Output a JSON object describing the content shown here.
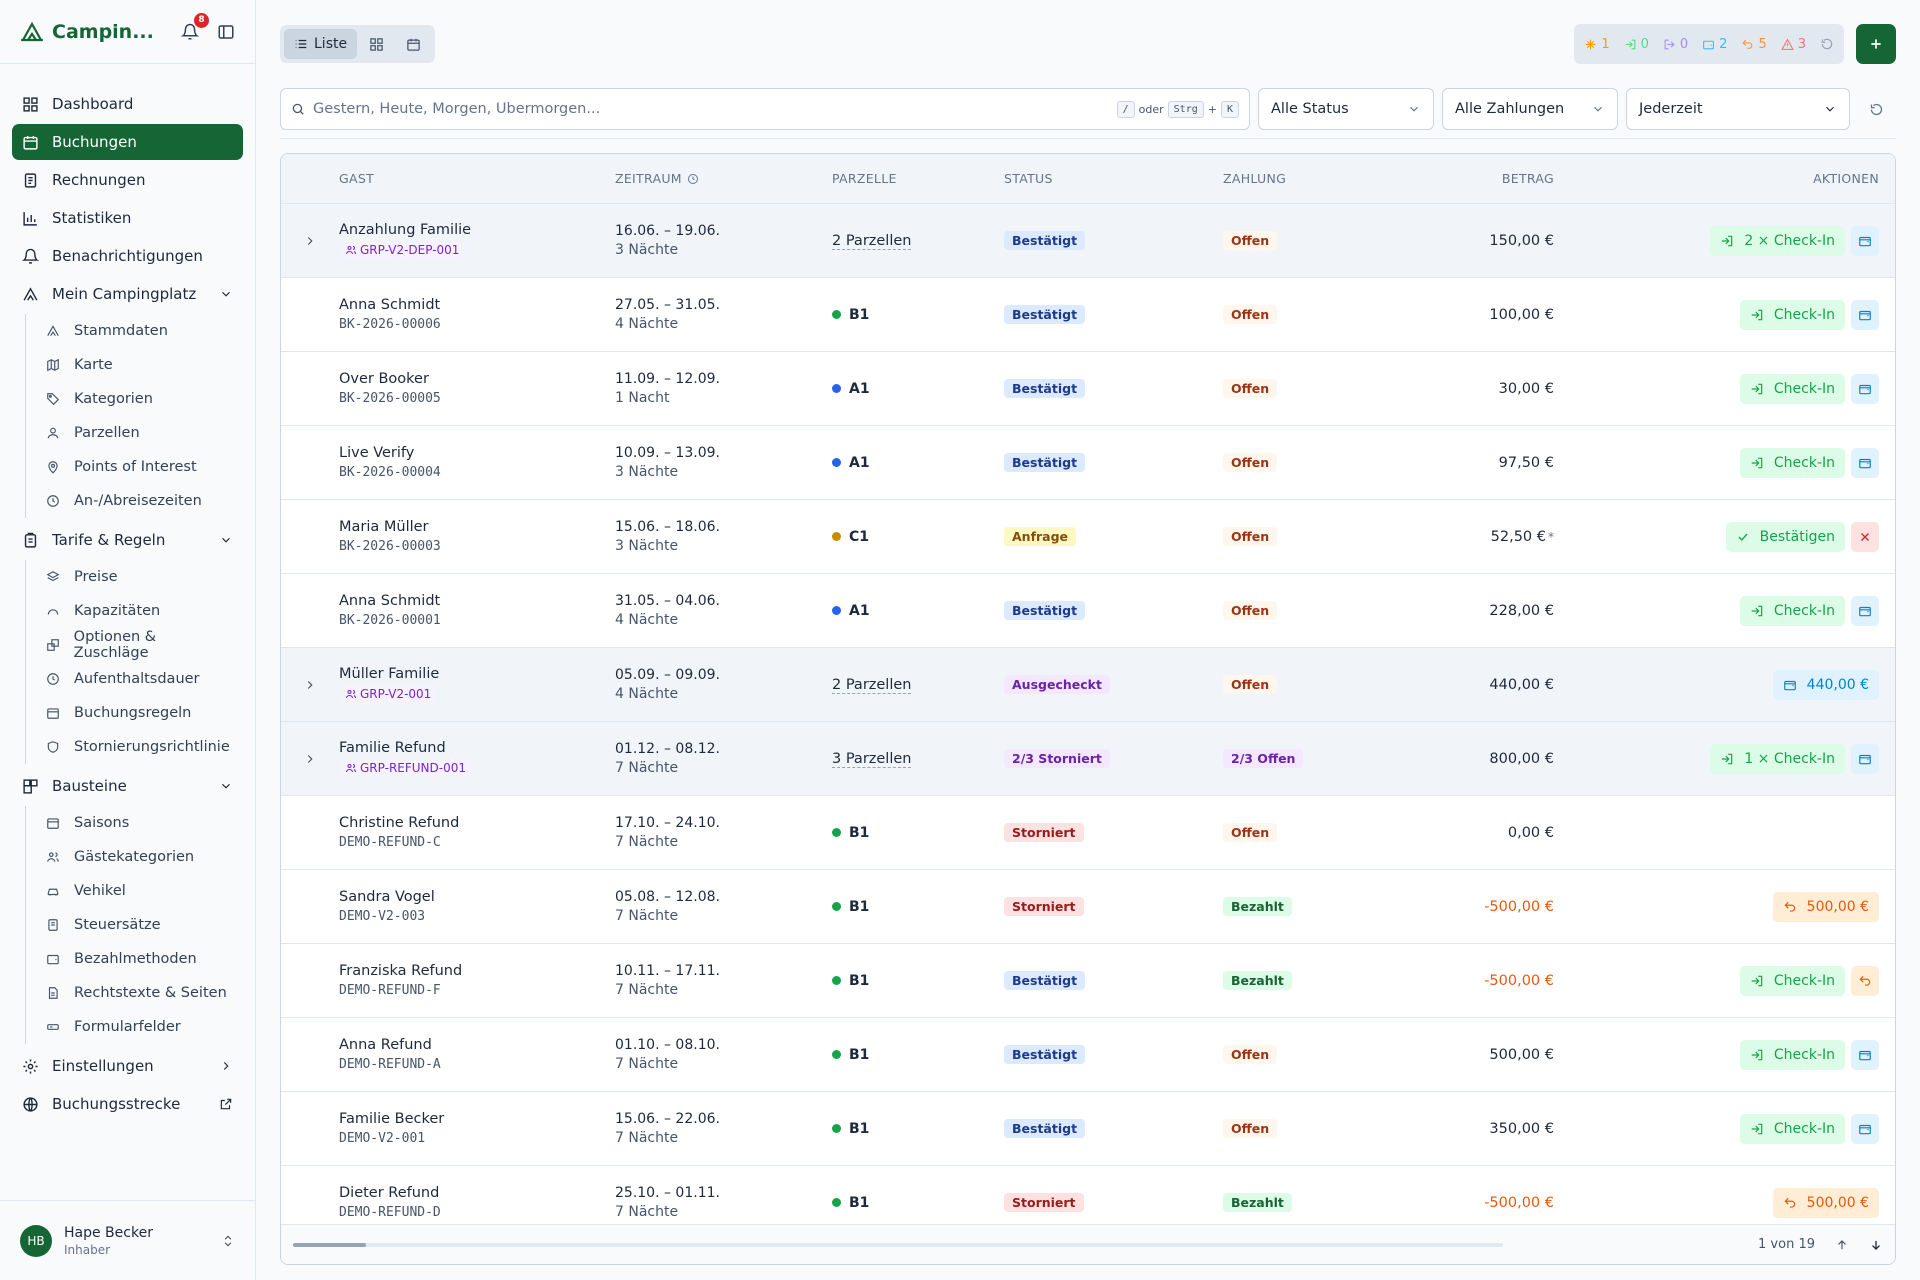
{
  "app": {
    "brand": "Campin...",
    "notifications_count": "8"
  },
  "sidebar": {
    "dashboard": "Dashboard",
    "buchungen": "Buchungen",
    "rechnungen": "Rechnungen",
    "statistiken": "Statistiken",
    "benachrichtigungen": "Benachrichtigungen",
    "mein_campingplatz": "Mein Campingplatz",
    "mein_items": [
      "Stammdaten",
      "Karte",
      "Kategorien",
      "Parzellen",
      "Points of Interest",
      "An-/Abreisezeiten"
    ],
    "tarife": "Tarife & Regeln",
    "tarife_items": [
      "Preise",
      "Kapazitäten",
      "Optionen & Zuschläge",
      "Aufenthaltsdauer",
      "Buchungsregeln",
      "Stornierungsrichtlinie"
    ],
    "bausteine": "Bausteine",
    "bausteine_items": [
      "Saisons",
      "Gästekategorien",
      "Vehikel",
      "Steuersätze",
      "Bezahlmethoden",
      "Rechtstexte & Seiten",
      "Formularfelder"
    ],
    "einstellungen": "Einstellungen",
    "buchungsstrecke": "Buchungsstrecke"
  },
  "user": {
    "initials": "HB",
    "name": "Hape Becker",
    "role": "Inhaber"
  },
  "toolbar": {
    "view_list": "Liste",
    "counters": [
      "1",
      "0",
      "0",
      "2",
      "5",
      "3"
    ],
    "counter_colors": [
      "#f59e0b",
      "#4ade80",
      "#a78bfa",
      "#38bdf8",
      "#fb923c",
      "#f87171"
    ]
  },
  "filters": {
    "search_placeholder": "Gestern, Heute, Morgen, Übermorgen...",
    "kbd_slash": "/",
    "kbd_or": "oder",
    "kbd_ctrl": "Strg",
    "kbd_plus": "+",
    "kbd_k": "K",
    "status": "Alle Status",
    "zahlung": "Alle Zahlungen",
    "zeit": "Jederzeit"
  },
  "table": {
    "headers": {
      "gast": "GAST",
      "zeitraum": "ZEITRAUM",
      "parzelle": "PARZELLE",
      "status": "STATUS",
      "zahlung": "ZAHLUNG",
      "betrag": "BETRAG",
      "aktionen": "AKTIONEN"
    },
    "rows": [
      {
        "group": true,
        "name": "Anzahlung Familie",
        "ref": "GRP-V2-DEP-001",
        "dates": "16.06. – 19.06.",
        "nights": "3 Nächte",
        "parzelle": "2 Parzellen",
        "status": "Bestätigt",
        "status_style": "blue",
        "zahlung": "Offen",
        "zahlung_style": "orange",
        "betrag": "150,00 €",
        "neg": false,
        "action": "checkin",
        "action_label": "2 × Check-In",
        "second": "wallet"
      },
      {
        "group": false,
        "name": "Anna Schmidt",
        "ref": "BK-2026-00006",
        "dates": "27.05. – 31.05.",
        "nights": "4 Nächte",
        "parzelle": "B1",
        "dot": "#16a34a",
        "status": "Bestätigt",
        "status_style": "blue",
        "zahlung": "Offen",
        "zahlung_style": "orange",
        "betrag": "100,00 €",
        "neg": false,
        "action": "checkin",
        "action_label": "Check-In",
        "second": "wallet"
      },
      {
        "group": false,
        "name": "Over Booker",
        "ref": "BK-2026-00005",
        "dates": "11.09. – 12.09.",
        "nights": "1 Nacht",
        "parzelle": "A1",
        "dot": "#2563eb",
        "status": "Bestätigt",
        "status_style": "blue",
        "zahlung": "Offen",
        "zahlung_style": "orange",
        "betrag": "30,00 €",
        "neg": false,
        "action": "checkin",
        "action_label": "Check-In",
        "second": "wallet"
      },
      {
        "group": false,
        "name": "Live Verify",
        "ref": "BK-2026-00004",
        "dates": "10.09. – 13.09.",
        "nights": "3 Nächte",
        "parzelle": "A1",
        "dot": "#2563eb",
        "status": "Bestätigt",
        "status_style": "blue",
        "zahlung": "Offen",
        "zahlung_style": "orange",
        "betrag": "97,50 €",
        "neg": false,
        "action": "checkin",
        "action_label": "Check-In",
        "second": "wallet"
      },
      {
        "group": false,
        "name": "Maria Müller",
        "ref": "BK-2026-00003",
        "dates": "15.06. – 18.06.",
        "nights": "3 Nächte",
        "parzelle": "C1",
        "dot": "#ca8a04",
        "status": "Anfrage",
        "status_style": "yel",
        "zahlung": "Offen",
        "zahlung_style": "orange",
        "betrag": "52,50 €",
        "betrag_mark": "*",
        "neg": false,
        "action": "confirm",
        "action_label": "Bestätigen",
        "second": "reject"
      },
      {
        "group": false,
        "name": "Anna Schmidt",
        "ref": "BK-2026-00001",
        "dates": "31.05. – 04.06.",
        "nights": "4 Nächte",
        "parzelle": "A1",
        "dot": "#2563eb",
        "status": "Bestätigt",
        "status_style": "blue",
        "zahlung": "Offen",
        "zahlung_style": "orange",
        "betrag": "228,00 €",
        "neg": false,
        "action": "checkin",
        "action_label": "Check-In",
        "second": "wallet"
      },
      {
        "group": true,
        "name": "Müller Familie",
        "ref": "GRP-V2-001",
        "dates": "05.09. – 09.09.",
        "nights": "4 Nächte",
        "parzelle": "2 Parzellen",
        "status": "Ausgecheckt",
        "status_style": "pur",
        "zahlung": "Offen",
        "zahlung_style": "orange",
        "betrag": "440,00 €",
        "neg": false,
        "action": "pay",
        "action_label": "440,00 €",
        "second": ""
      },
      {
        "group": true,
        "name": "Familie Refund",
        "ref": "GRP-REFUND-001",
        "dates": "01.12. – 08.12.",
        "nights": "7 Nächte",
        "parzelle": "3 Parzellen",
        "status": "2/3 Storniert",
        "status_style": "pur",
        "zahlung": "2/3 Offen",
        "zahlung_style": "pur",
        "betrag": "800,00 €",
        "neg": false,
        "action": "checkin",
        "action_label": "1 × Check-In",
        "second": "wallet"
      },
      {
        "group": false,
        "name": "Christine Refund",
        "ref": "DEMO-REFUND-C",
        "dates": "17.10. – 24.10.",
        "nights": "7 Nächte",
        "parzelle": "B1",
        "dot": "#16a34a",
        "status": "Storniert",
        "status_style": "red",
        "zahlung": "Offen",
        "zahlung_style": "orange",
        "betrag": "0,00 €",
        "neg": false,
        "action": "",
        "action_label": "",
        "second": ""
      },
      {
        "group": false,
        "name": "Sandra Vogel",
        "ref": "DEMO-V2-003",
        "dates": "05.08. – 12.08.",
        "nights": "7 Nächte",
        "parzelle": "B1",
        "dot": "#16a34a",
        "status": "Storniert",
        "status_style": "red",
        "zahlung": "Bezahlt",
        "zahlung_style": "green",
        "betrag": "-500,00 €",
        "neg": true,
        "action": "refund",
        "action_label": "500,00 €",
        "second": ""
      },
      {
        "group": false,
        "name": "Franziska Refund",
        "ref": "DEMO-REFUND-F",
        "dates": "10.11. – 17.11.",
        "nights": "7 Nächte",
        "parzelle": "B1",
        "dot": "#16a34a",
        "status": "Bestätigt",
        "status_style": "blue",
        "zahlung": "Bezahlt",
        "zahlung_style": "green",
        "betrag": "-500,00 €",
        "neg": true,
        "action": "checkin",
        "action_label": "Check-In",
        "second": "refund"
      },
      {
        "group": false,
        "name": "Anna Refund",
        "ref": "DEMO-REFUND-A",
        "dates": "01.10. – 08.10.",
        "nights": "7 Nächte",
        "parzelle": "B1",
        "dot": "#16a34a",
        "status": "Bestätigt",
        "status_style": "blue",
        "zahlung": "Offen",
        "zahlung_style": "orange",
        "betrag": "500,00 €",
        "neg": false,
        "action": "checkin",
        "action_label": "Check-In",
        "second": "wallet"
      },
      {
        "group": false,
        "name": "Familie Becker",
        "ref": "DEMO-V2-001",
        "dates": "15.06. – 22.06.",
        "nights": "7 Nächte",
        "parzelle": "B1",
        "dot": "#16a34a",
        "status": "Bestätigt",
        "status_style": "blue",
        "zahlung": "Offen",
        "zahlung_style": "orange",
        "betrag": "350,00 €",
        "neg": false,
        "action": "checkin",
        "action_label": "Check-In",
        "second": "wallet"
      },
      {
        "group": false,
        "name": "Dieter Refund",
        "ref": "DEMO-REFUND-D",
        "dates": "25.10. – 01.11.",
        "nights": "7 Nächte",
        "parzelle": "B1",
        "dot": "#16a34a",
        "status": "Storniert",
        "status_style": "red",
        "zahlung": "Bezahlt",
        "zahlung_style": "green",
        "betrag": "-500,00 €",
        "neg": true,
        "action": "refund",
        "action_label": "500,00 €",
        "second": ""
      }
    ]
  },
  "pager": {
    "text": "1 von 19",
    "scroll_fraction": 0.06
  }
}
